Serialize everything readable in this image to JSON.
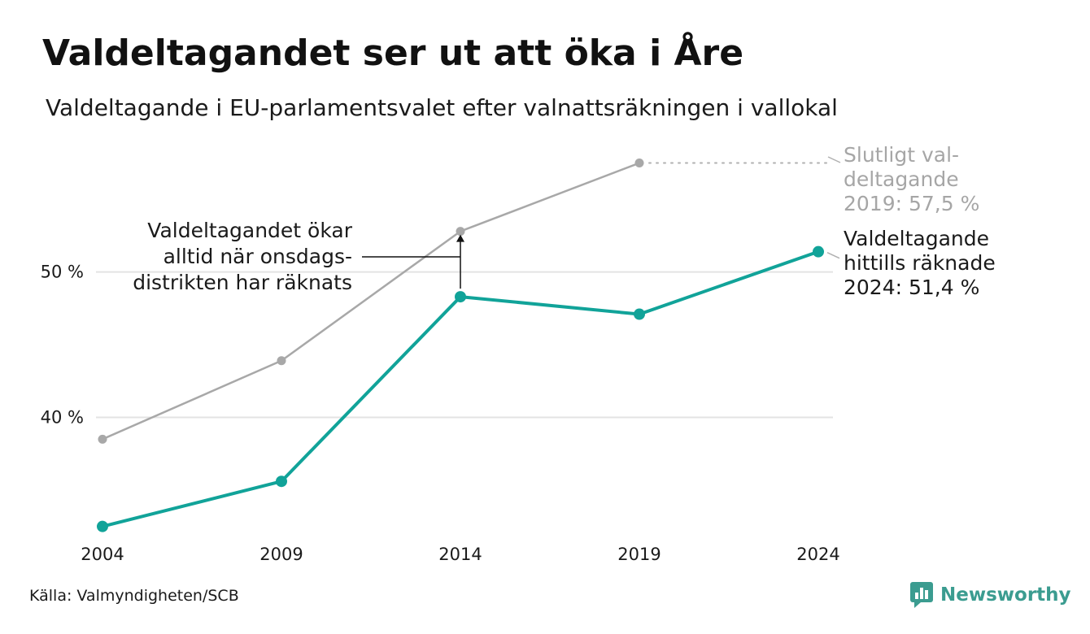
{
  "title": "Valdeltagandet ser ut att öka i Åre",
  "subtitle": "Valdeltagande i EU-parlamentsvalet efter valnattsräkningen i vallokal",
  "source": "Källa: Valmyndigheten/SCB",
  "brand": {
    "name": "Newsworthy",
    "icon": "newsworthy-logo-icon",
    "color": "#3b9c90"
  },
  "chart_data": {
    "type": "line",
    "x": [
      "2004",
      "2009",
      "2014",
      "2019",
      "2024"
    ],
    "series": [
      {
        "name": "Slutligt valdeltagande",
        "color": "#a8a8a8",
        "values": [
          38.5,
          43.9,
          52.8,
          57.5,
          null
        ]
      },
      {
        "name": "Valdeltagande hittills räknade",
        "color": "#11a399",
        "values": [
          32.5,
          35.6,
          48.3,
          47.1,
          51.4
        ]
      }
    ],
    "y_ticks": [
      {
        "value": 40,
        "label": "40 %"
      },
      {
        "value": 50,
        "label": "50 %"
      }
    ],
    "ylim": [
      32,
      58
    ],
    "grid": true,
    "annotations": {
      "main": [
        "Valdeltagandet ökar",
        "alltid när onsdags-",
        "distrikten har räknats"
      ],
      "final": [
        "Slutligt val-",
        "deltagande",
        "2019: 57,5 %"
      ],
      "counted": [
        "Valdeltagande",
        "hittills räknade",
        "2024: 51,4 %"
      ]
    }
  }
}
